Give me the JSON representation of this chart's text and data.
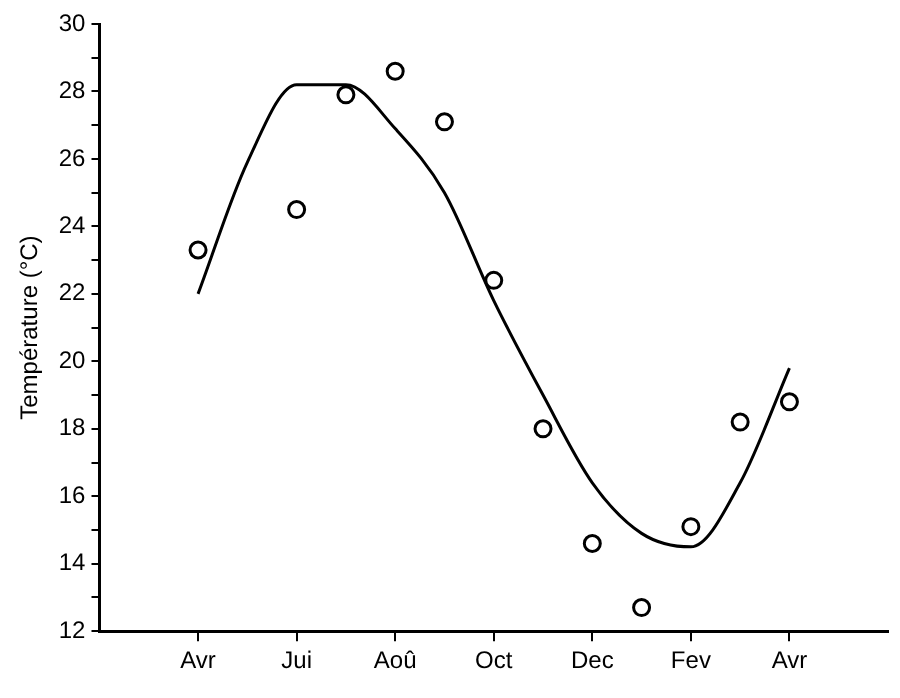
{
  "chart_data": {
    "type": "scatter",
    "ylabel": "Température (°C)",
    "ylim": [
      12,
      30
    ],
    "categories": [
      null,
      null,
      "Avr",
      null,
      "Jui",
      null,
      "Aoû",
      null,
      "Oct",
      null,
      "Dec",
      null,
      "Fev",
      null,
      "Avr",
      null,
      null
    ],
    "yticks": [
      12,
      {
        "value": 13,
        "label": null
      },
      14,
      {
        "value": 15,
        "label": null
      },
      16,
      {
        "value": 17,
        "label": null
      },
      18,
      {
        "value": 19,
        "label": null
      },
      20,
      {
        "value": 21,
        "label": null
      },
      22,
      {
        "value": 23,
        "label": null
      },
      24,
      {
        "value": 25,
        "label": null
      },
      26,
      {
        "value": 27,
        "label": null
      },
      28,
      {
        "value": 29,
        "label": null
      },
      30
    ],
    "grid": false,
    "legend": false,
    "series": [
      {
        "color": "#000000",
        "marker": "circle",
        "values": [
          null,
          null,
          23.3,
          null,
          24.5,
          27.9,
          28.6,
          27.1,
          22.4,
          18.0,
          14.6,
          12.7,
          15.1,
          18.2,
          18.8,
          null,
          null
        ]
      },
      {
        "type": "line",
        "color": "#000000",
        "marker": "none",
        "line_style": "solid",
        "values": [
          null,
          null,
          22.0,
          25.9,
          28.2,
          28.2,
          26.9,
          25.0,
          21.8,
          19.0,
          16.4,
          14.9,
          14.5,
          16.4,
          19.8,
          null,
          null
        ]
      }
    ]
  }
}
